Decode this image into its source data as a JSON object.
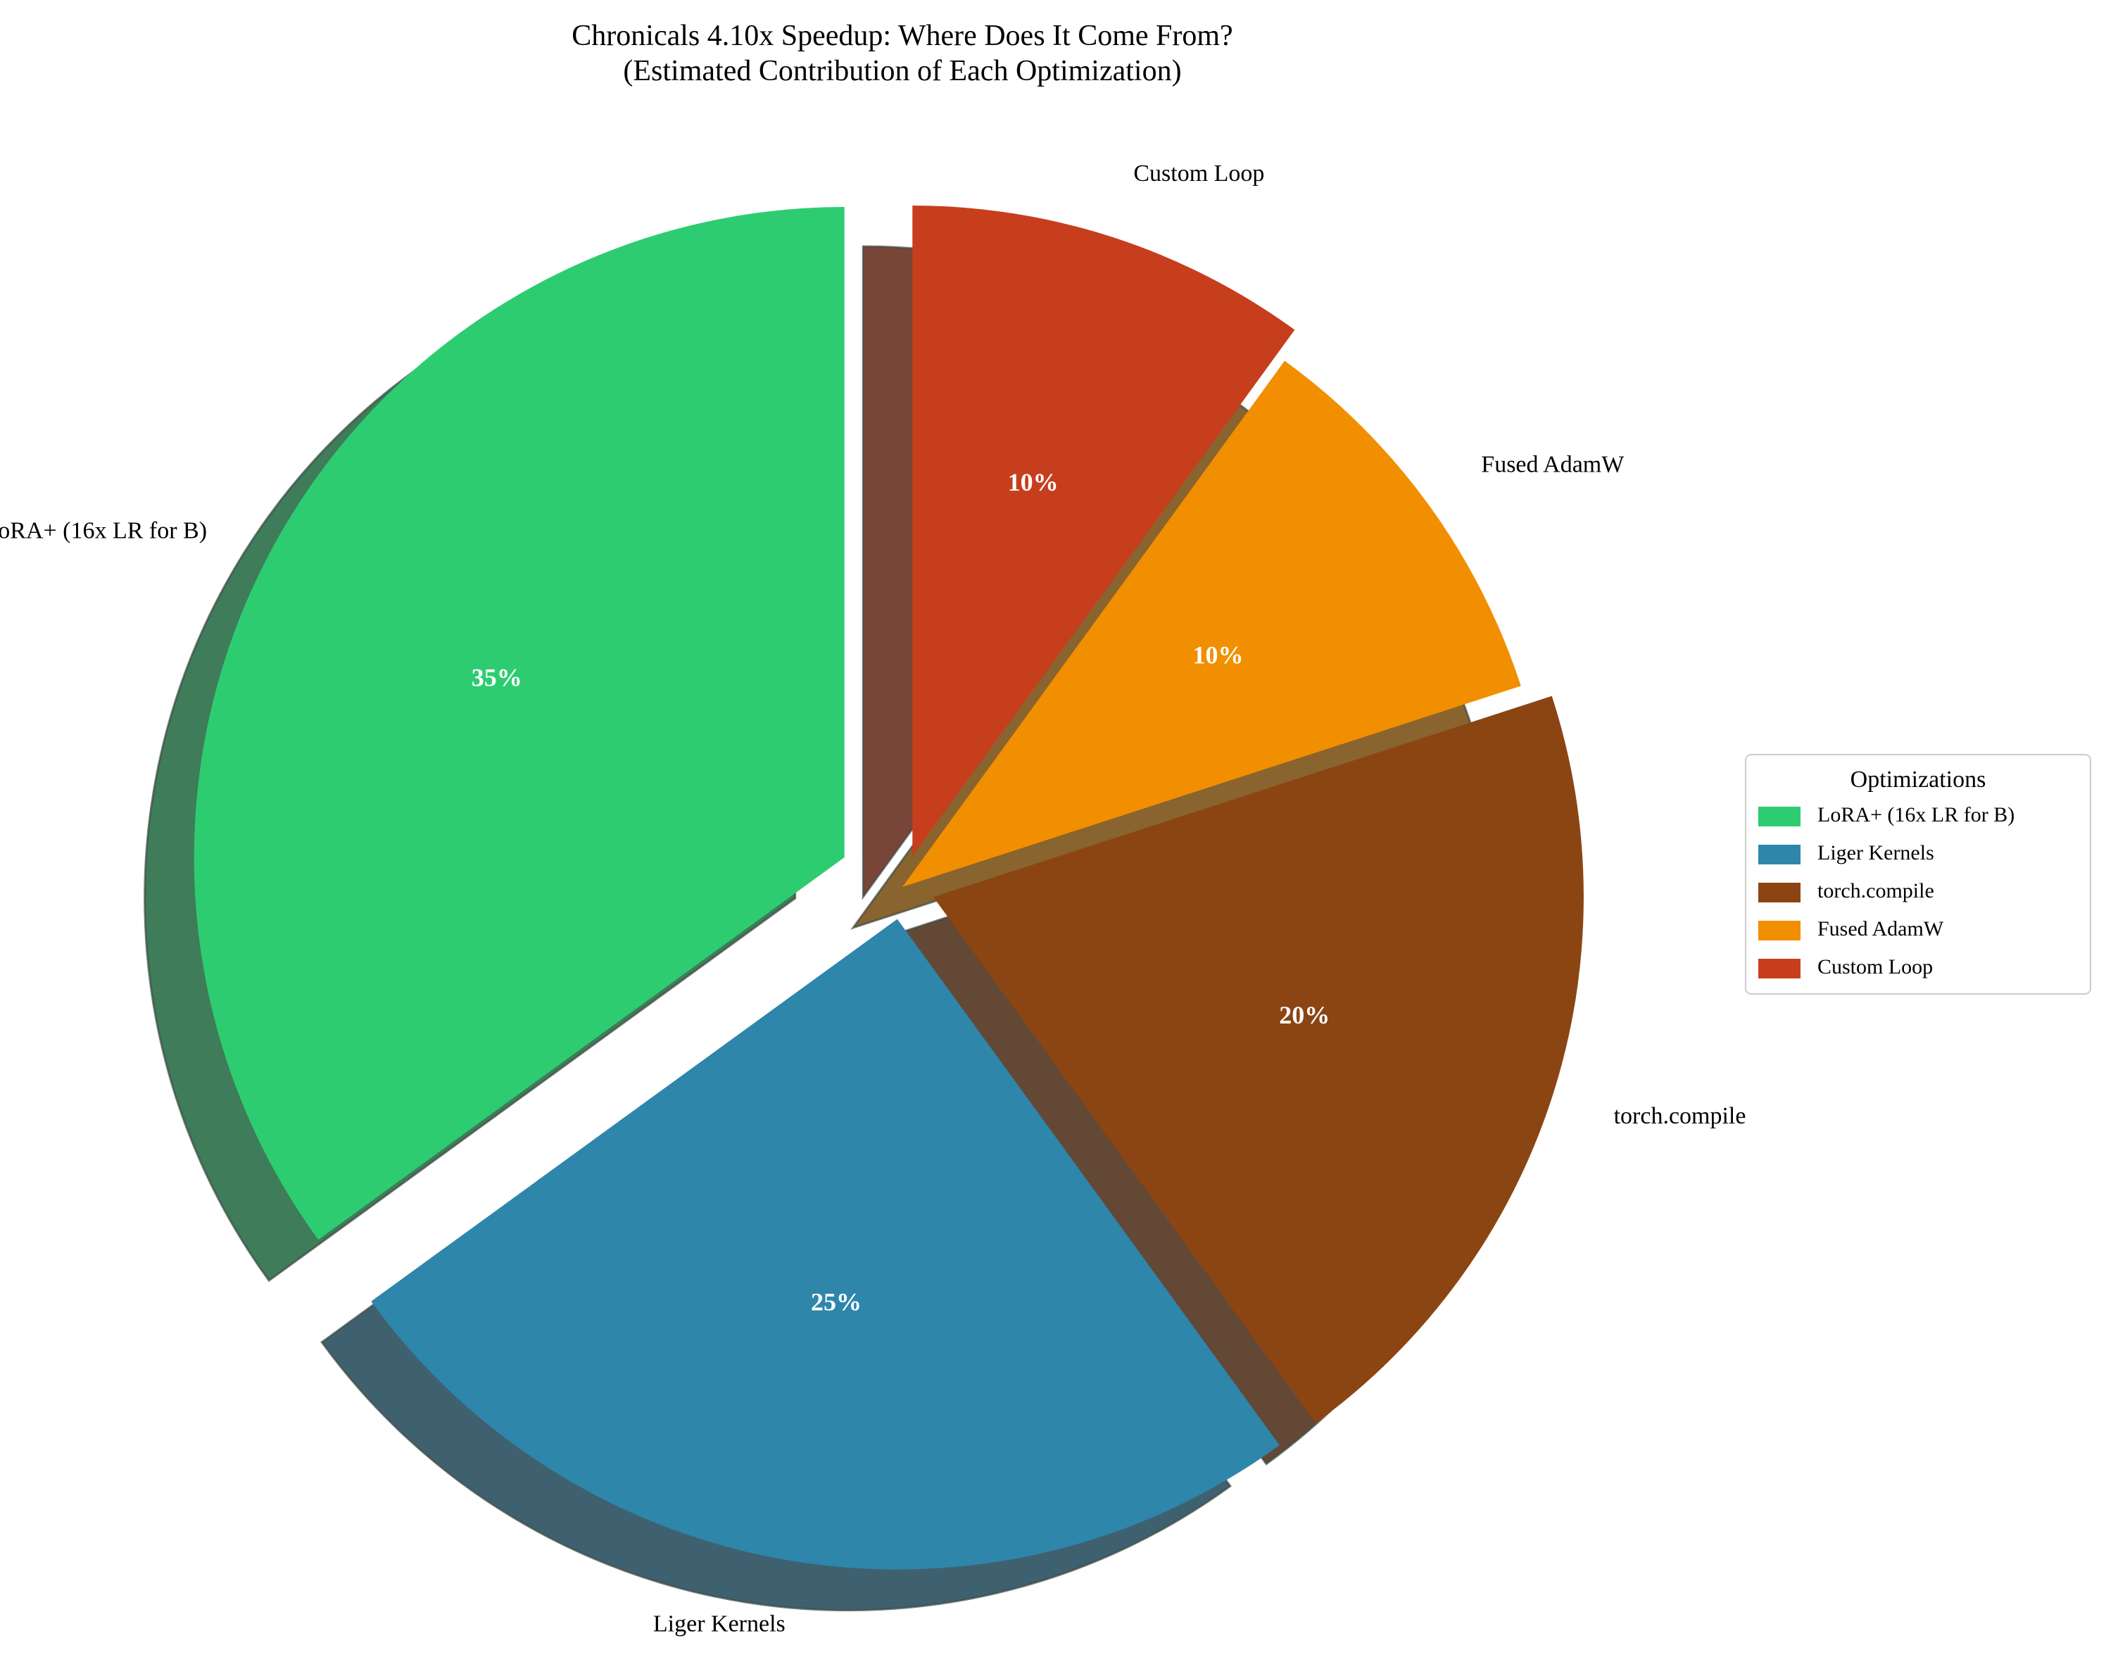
{
  "chart_data": {
    "type": "pie",
    "title": "Chronicals 4.10x Speedup: Where Does It Come From?",
    "subtitle": "(Estimated Contribution of Each Optimization)",
    "legend_title": "Optimizations",
    "legend_placement": "center-right",
    "shadow": true,
    "start_angle_deg": 90,
    "direction": "counterclockwise",
    "slices": [
      {
        "label": "LoRA+ (16x LR for B)",
        "value": 35,
        "pct_label": "35%",
        "color": "#2ecc71",
        "explode": 0.1
      },
      {
        "label": "Liger Kernels",
        "value": 25,
        "pct_label": "25%",
        "color": "#2e86ab",
        "explode": 0.05
      },
      {
        "label": "torch.compile",
        "value": 20,
        "pct_label": "20%",
        "color": "#8b4513",
        "explode": 0.05
      },
      {
        "label": "Fused AdamW",
        "value": 10,
        "pct_label": "10%",
        "color": "#f18f01",
        "explode": 0
      },
      {
        "label": "Custom Loop",
        "value": 10,
        "pct_label": "10%",
        "color": "#c73e1d",
        "explode": 0.05
      }
    ]
  }
}
